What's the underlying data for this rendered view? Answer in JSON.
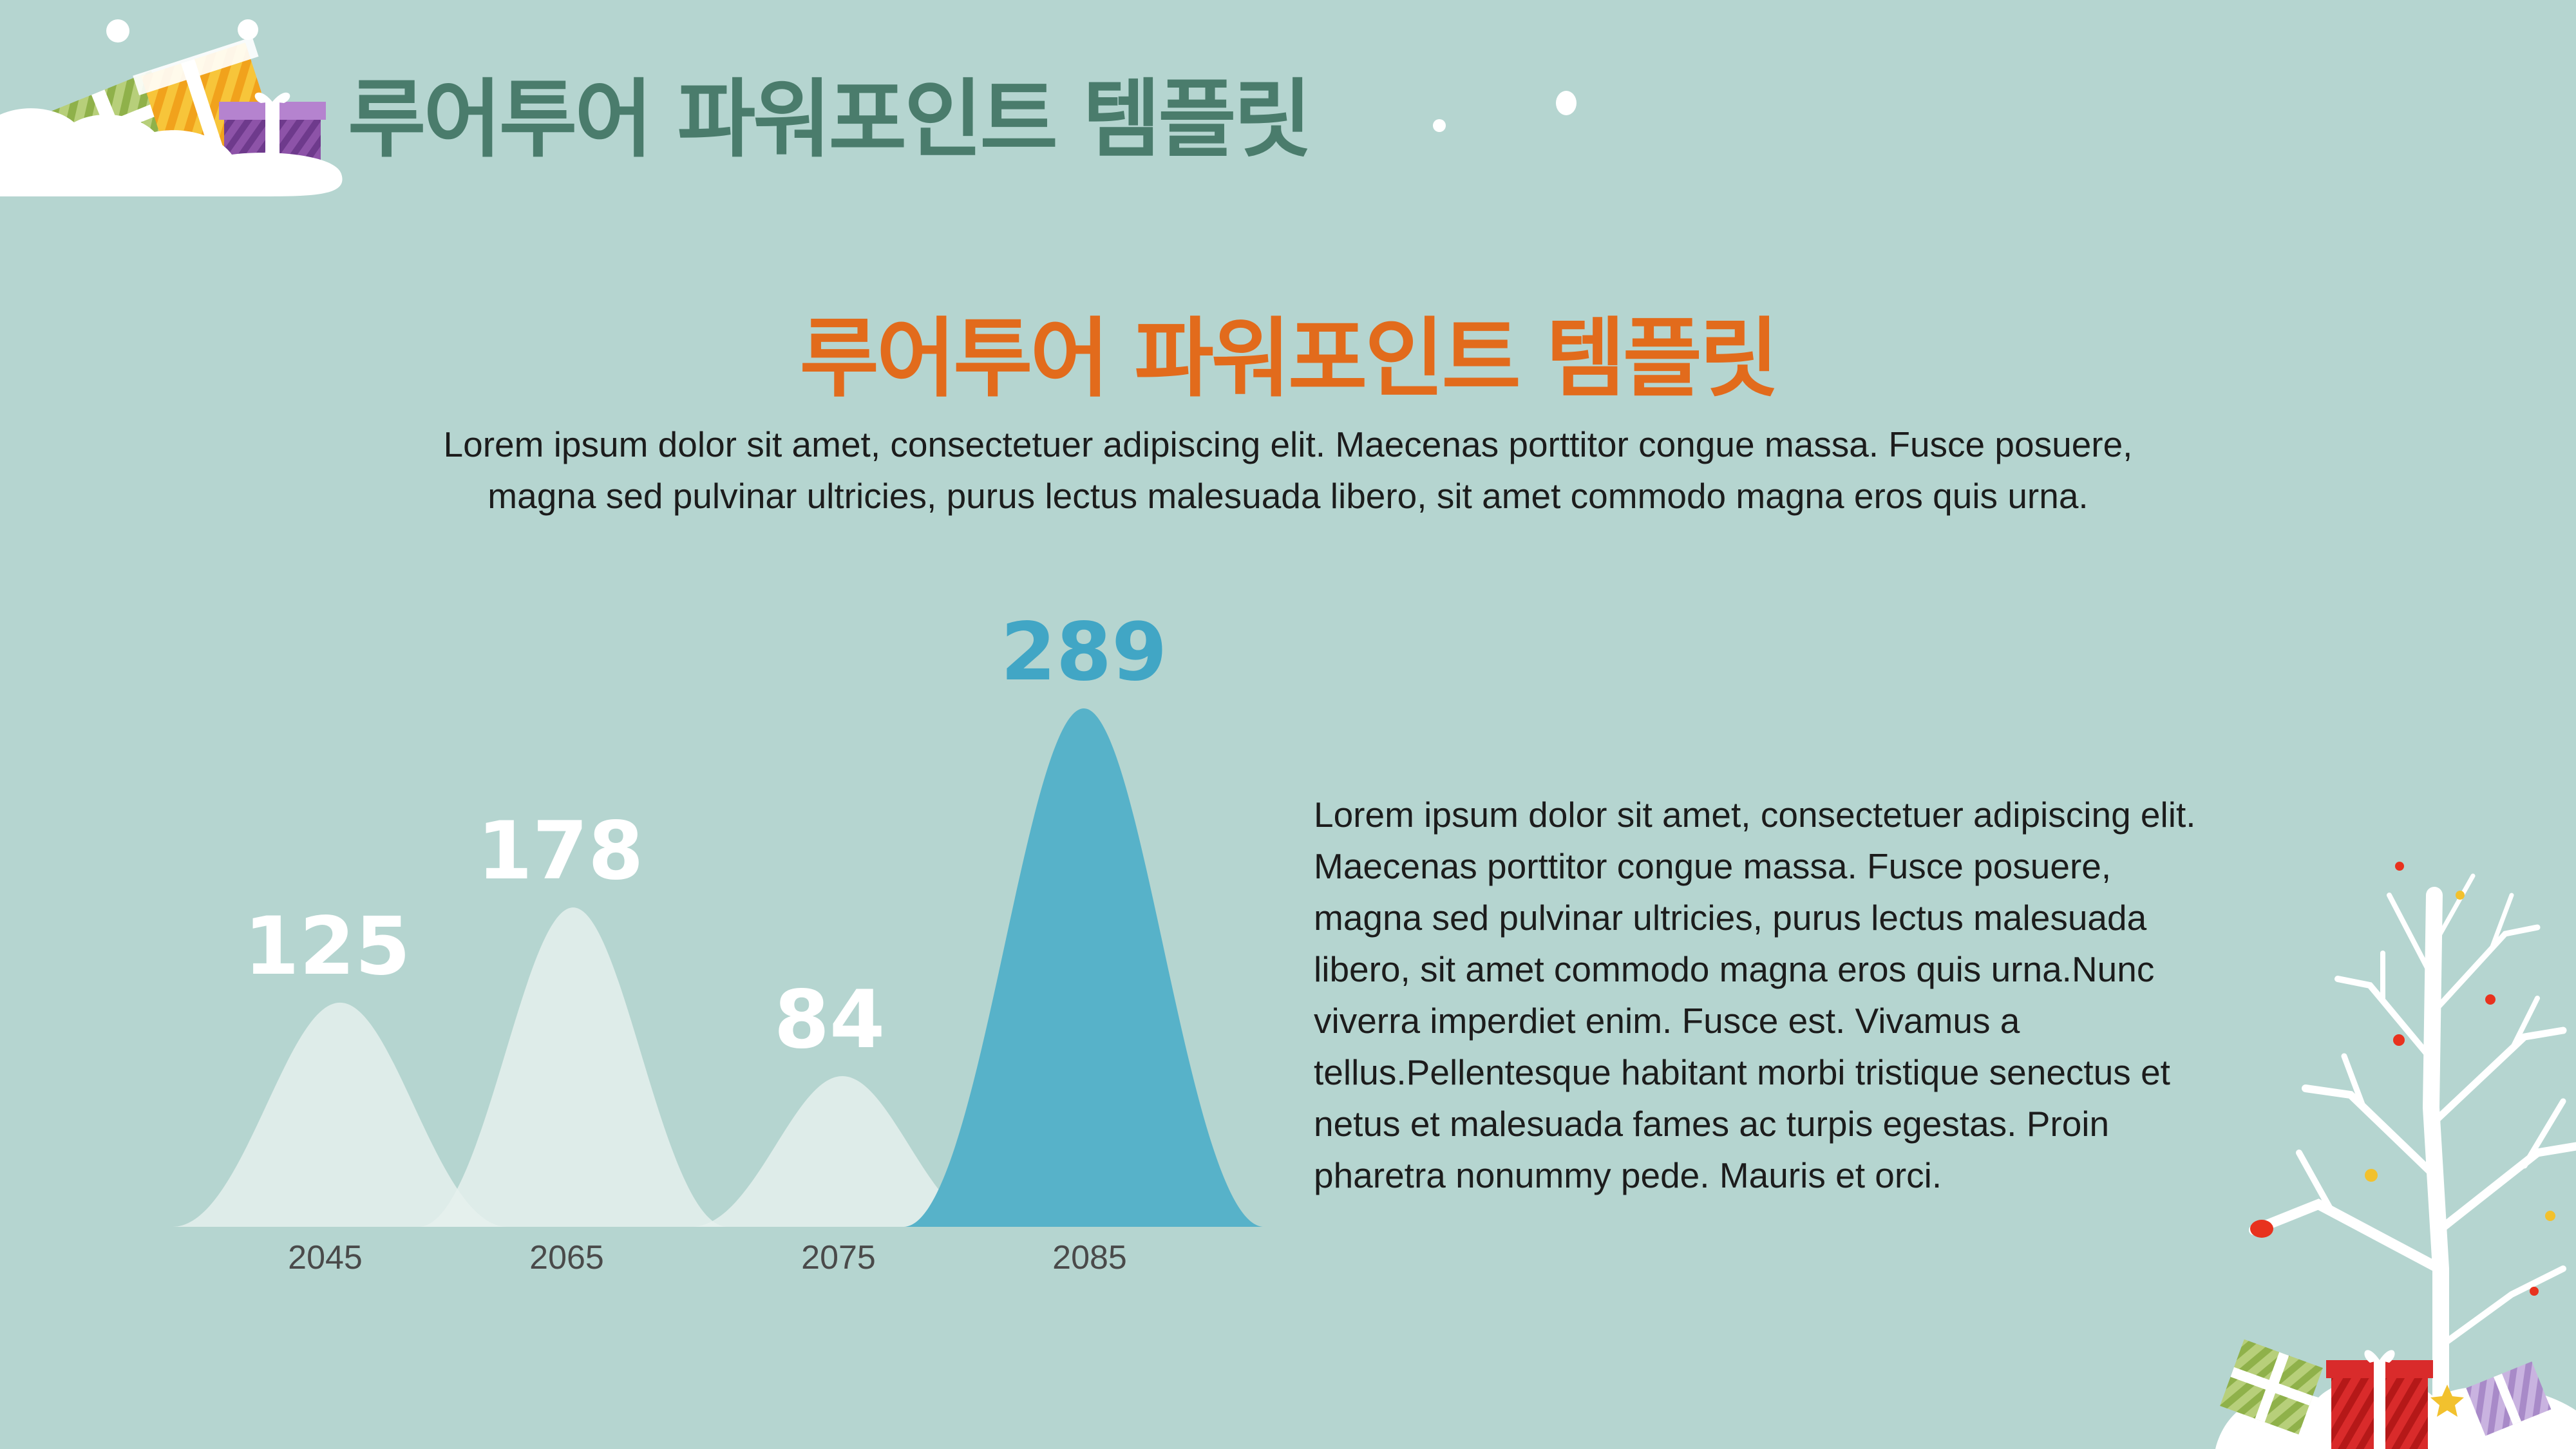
{
  "header": {
    "title": "루어투어 파워포인트 템플릿"
  },
  "main": {
    "title": "루어투어 파워포인트 템플릿",
    "subtitle_lines": [
      "Lorem ipsum dolor sit amet, consectetuer adipiscing elit. Maecenas porttitor congue massa. Fusce posuere,",
      "magna sed pulvinar ultricies, purus lectus malesuada libero, sit amet commodo magna eros quis urna."
    ]
  },
  "body_text_lines": [
    "Lorem ipsum dolor sit amet, consectetuer adipiscing elit.",
    "Maecenas porttitor congue massa. Fusce posuere,",
    "magna sed pulvinar ultricies, purus lectus malesuada",
    "libero, sit amet commodo magna eros quis urna.Nunc",
    "viverra imperdiet enim. Fusce est. Vivamus a",
    "tellus.Pellentesque habitant morbi tristique senectus et",
    "netus et malesuada fames ac turpis egestas. Proin",
    "pharetra nonummy pede. Mauris et orci."
  ],
  "colors": {
    "background": "#b5d5d0",
    "header_title": "#4a7c6c",
    "main_title": "#e26b1c",
    "peak_light": "#e6f0ee",
    "peak_highlight": "#57b2c9",
    "label_light": "#ffffff",
    "label_highlight": "#41a6c5"
  },
  "chart_data": {
    "type": "area",
    "categories": [
      "2045",
      "2065",
      "2075",
      "2085"
    ],
    "values": [
      125,
      178,
      84,
      289
    ],
    "data_labels": [
      "125",
      "178",
      "84",
      "289"
    ],
    "highlight_index": 3,
    "ylim": [
      0,
      289
    ]
  },
  "decorations": [
    "gift-boxes",
    "snow-cloud",
    "snowflakes",
    "winter-tree"
  ]
}
